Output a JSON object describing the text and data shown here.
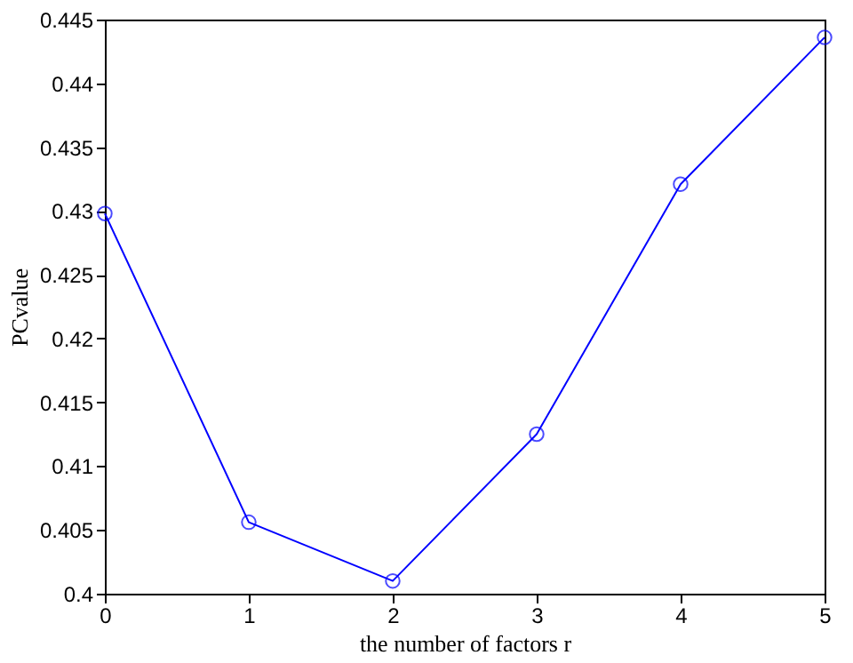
{
  "chart_data": {
    "type": "line",
    "xlabel": "the number of factors r",
    "ylabel": "PCvalue",
    "x": [
      0,
      1,
      2,
      3,
      4,
      5
    ],
    "series": [
      {
        "color": "#0000ff",
        "values": [
          0.4298,
          0.4056,
          0.401,
          0.4125,
          0.4321,
          0.4436
        ]
      }
    ],
    "xlim": [
      0,
      5
    ],
    "xticks": [
      0,
      1,
      2,
      3,
      4,
      5
    ],
    "ylim": [
      0.4,
      0.445
    ],
    "yticks": [
      0.4,
      0.405,
      0.41,
      0.415,
      0.42,
      0.425,
      0.43,
      0.435,
      0.44,
      0.445
    ],
    "marker": "circle",
    "line_style": "solid",
    "grid": false
  }
}
